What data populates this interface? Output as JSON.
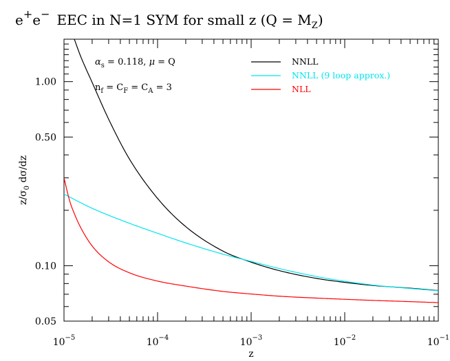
{
  "chart_data": {
    "type": "line",
    "title": "e⁺e⁻ EEC in N=1 SYM for small z (Q = M_Z)",
    "title_parts": {
      "e": "e",
      "plus": "+",
      "e2": "e",
      "minus": "−",
      "main": "EEC in N=1 SYM for small z (Q = M",
      "sub": "Z",
      "close": ")"
    },
    "xlabel": "z",
    "ylabel": "z/σ₀ dσ/dz",
    "ylabel_parts": {
      "a": "z/σ",
      "sub": "0",
      "b": " dσ/dz"
    },
    "x_scale": "log",
    "y_scale": "log",
    "xlim": [
      1e-05,
      0.1
    ],
    "ylim": [
      0.05,
      1.7
    ],
    "grid": false,
    "legend_position": "top-right",
    "x_ticks": [
      {
        "value": 1e-05,
        "base": "10",
        "exp": "−5"
      },
      {
        "value": 0.0001,
        "base": "10",
        "exp": "−4"
      },
      {
        "value": 0.001,
        "base": "10",
        "exp": "−3"
      },
      {
        "value": 0.01,
        "base": "10",
        "exp": "−2"
      },
      {
        "value": 0.1,
        "base": "10",
        "exp": "−1"
      }
    ],
    "y_ticks": [
      {
        "value": 1.0,
        "label": "1.00"
      },
      {
        "value": 0.5,
        "label": "0.50"
      },
      {
        "value": 0.1,
        "label": "0.10"
      },
      {
        "value": 0.05,
        "label": "0.05"
      }
    ],
    "annotations": {
      "line1": {
        "alpha": "α",
        "alpha_sub": "s",
        "rest": " = 0.118,  ",
        "mu": "μ",
        "mu_rest": " = Q"
      },
      "line2": {
        "n": "n",
        "n_sub": "f",
        "eq1": " = C",
        "f_sub": "F",
        "eq2": " = C",
        "a_sub": "A",
        "eq3": " = 3"
      }
    },
    "series": [
      {
        "name": "NNLL",
        "color": "#000000",
        "x": [
          1.29e-05,
          1.5e-05,
          2e-05,
          3e-05,
          5e-05,
          0.0001,
          0.0002,
          0.0005,
          0.001,
          0.002,
          0.005,
          0.01,
          0.02,
          0.05,
          0.1
        ],
        "y": [
          1.7,
          1.38,
          0.99,
          0.625,
          0.38,
          0.232,
          0.163,
          0.12,
          0.1045,
          0.094,
          0.0853,
          0.0812,
          0.0781,
          0.0755,
          0.0733
        ]
      },
      {
        "name": "NNLL (9 loop approx.)",
        "color": "#00e5ee",
        "x": [
          1e-05,
          2e-05,
          5e-05,
          0.0001,
          0.0002,
          0.0005,
          0.001,
          0.002,
          0.005,
          0.01,
          0.02,
          0.05,
          0.1
        ],
        "y": [
          0.245,
          0.205,
          0.17,
          0.15,
          0.133,
          0.1155,
          0.1055,
          0.0965,
          0.0873,
          0.0823,
          0.0785,
          0.0752,
          0.0731
        ]
      },
      {
        "name": "NLL",
        "color": "#ff0000",
        "x": [
          1e-05,
          1.15e-05,
          1.3e-05,
          1.5e-05,
          2e-05,
          3e-05,
          5e-05,
          0.0001,
          0.0002,
          0.0005,
          0.001,
          0.002,
          0.005,
          0.01,
          0.02,
          0.05,
          0.1
        ],
        "y": [
          0.3,
          0.225,
          0.19,
          0.162,
          0.128,
          0.105,
          0.0915,
          0.0825,
          0.0775,
          0.0725,
          0.0702,
          0.0683,
          0.0667,
          0.0657,
          0.0648,
          0.0638,
          0.063
        ]
      }
    ]
  }
}
